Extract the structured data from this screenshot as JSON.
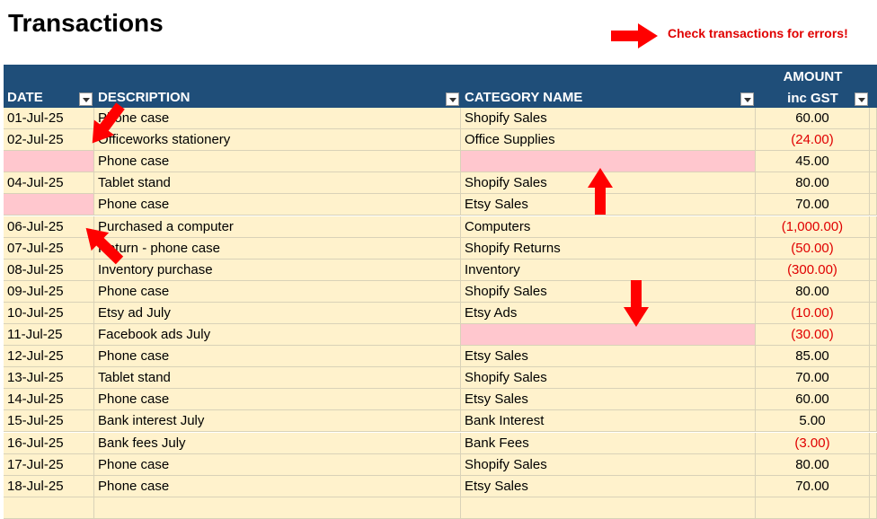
{
  "header": {
    "title": "Transactions",
    "note": "Check transactions for errors!"
  },
  "table": {
    "columns": [
      "DATE",
      "DESCRIPTION",
      "CATEGORY NAME"
    ],
    "amount_heading": [
      "AMOUNT",
      "inc GST"
    ],
    "rows": [
      [
        "01-Jul-25",
        "Phone case",
        "Shopify Sales",
        "60.00"
      ],
      [
        "02-Jul-25",
        "Officeworks stationery",
        "Office Supplies",
        "(24.00)"
      ],
      [
        null,
        "Phone case",
        null,
        "45.00"
      ],
      [
        "04-Jul-25",
        "Tablet stand",
        "Shopify Sales",
        "80.00"
      ],
      [
        null,
        "Phone case",
        "Etsy Sales",
        "70.00"
      ],
      [
        "06-Jul-25",
        "Purchased a computer",
        "Computers",
        "(1,000.00)"
      ],
      [
        "07-Jul-25",
        "Return - phone case",
        "Shopify Returns",
        "(50.00)"
      ],
      [
        "08-Jul-25",
        "Inventory purchase",
        "Inventory",
        "(300.00)"
      ],
      [
        "09-Jul-25",
        "Phone case",
        "Shopify Sales",
        "80.00"
      ],
      [
        "10-Jul-25",
        "Etsy ad July",
        "Etsy Ads",
        "(10.00)"
      ],
      [
        "11-Jul-25",
        "Facebook ads July",
        null,
        "(30.00)"
      ],
      [
        "12-Jul-25",
        "Phone case",
        "Etsy Sales",
        "85.00"
      ],
      [
        "13-Jul-25",
        "Tablet stand",
        "Shopify Sales",
        "70.00"
      ],
      [
        "14-Jul-25",
        "Phone case",
        "Etsy Sales",
        "60.00"
      ],
      [
        "15-Jul-25",
        "Bank interest July",
        "Bank Interest",
        "5.00"
      ],
      [
        "16-Jul-25",
        "Bank fees July",
        "Bank Fees",
        "(3.00)"
      ],
      [
        "17-Jul-25",
        "Phone case",
        "Shopify Sales",
        "80.00"
      ],
      [
        "18-Jul-25",
        "Phone case",
        "Etsy Sales",
        "70.00"
      ]
    ]
  }
}
